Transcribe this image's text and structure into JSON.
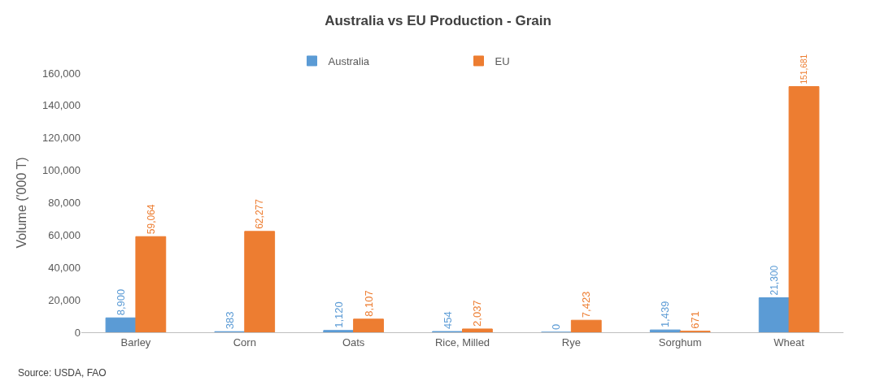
{
  "chart_data": {
    "type": "bar",
    "title": "Australia vs EU Production - Grain",
    "ylabel": "Volume ('000 T)",
    "categories": [
      "Barley",
      "Corn",
      "Oats",
      "Rice, Milled",
      "Rye",
      "Sorghum",
      "Wheat"
    ],
    "series": [
      {
        "name": "Australia",
        "color": "#5b9bd5",
        "values": [
          8900,
          383,
          1120,
          454,
          0,
          1439,
          21300
        ],
        "value_labels": [
          "8,900",
          "383",
          "1,120",
          "454",
          "0",
          "1,439",
          "21,300"
        ]
      },
      {
        "name": "EU",
        "color": "#ed7d31",
        "values": [
          59064,
          62277,
          8107,
          2037,
          7423,
          671,
          151681
        ],
        "value_labels": [
          "59,064",
          "62,277",
          "8,107",
          "2,037",
          "7,423",
          "671",
          "151,681"
        ]
      }
    ],
    "ylim": [
      0,
      160000
    ],
    "yticks": [
      {
        "value": 0,
        "label": "0"
      },
      {
        "value": 20000,
        "label": "20,000"
      },
      {
        "value": 40000,
        "label": "40,000"
      },
      {
        "value": 60000,
        "label": "60,000"
      },
      {
        "value": 80000,
        "label": "80,000"
      },
      {
        "value": 100000,
        "label": "100,000"
      },
      {
        "value": 120000,
        "label": "120,000"
      },
      {
        "value": 140000,
        "label": "140,000"
      },
      {
        "value": 160000,
        "label": "160,000"
      }
    ],
    "legend": "top",
    "annotations": [
      "Source: USDA, FAO"
    ]
  }
}
